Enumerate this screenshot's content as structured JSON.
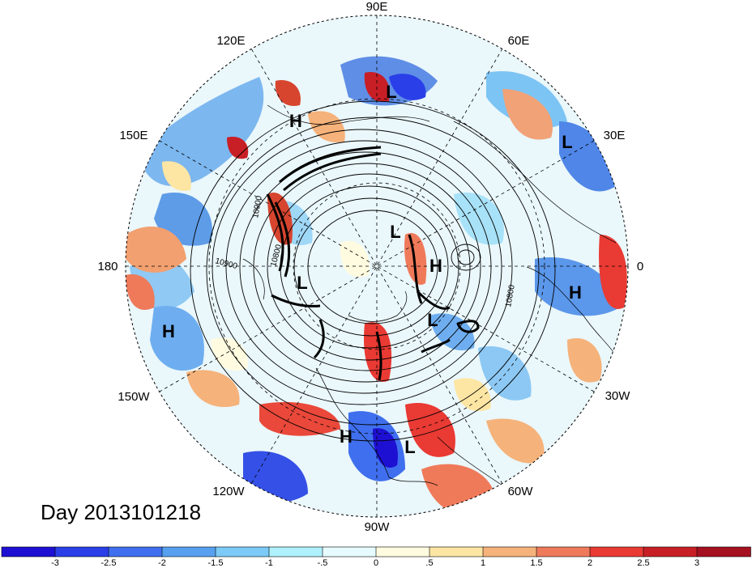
{
  "title": "Day 2013101218",
  "longitude_labels": {
    "n90e": "90E",
    "n60e": "60E",
    "n30e": "30E",
    "n0": "0",
    "n30w": "30W",
    "n60w": "60W",
    "n90w": "90W",
    "n120w": "120W",
    "n150w": "150W",
    "n180": "180",
    "n150e": "150E",
    "n120e": "120E"
  },
  "pressure_centers": [
    {
      "type": "L",
      "label": "L"
    },
    {
      "type": "H",
      "label": "H"
    },
    {
      "type": "L",
      "label": "L"
    },
    {
      "type": "L",
      "label": "L"
    },
    {
      "type": "H",
      "label": "H"
    },
    {
      "type": "L",
      "label": "L"
    },
    {
      "type": "H",
      "label": "H"
    },
    {
      "type": "L",
      "label": "L"
    },
    {
      "type": "H",
      "label": "H"
    },
    {
      "type": "H",
      "label": "H"
    },
    {
      "type": "L",
      "label": "L"
    }
  ],
  "contour_labels": [
    "10900",
    "10900",
    "10800",
    "10800"
  ],
  "colorbar": {
    "ticks": [
      "-3",
      "-2.5",
      "-2",
      "-1.5",
      "-1",
      "-.5",
      "0",
      ".5",
      "1",
      "1.5",
      "2",
      "2.5",
      "3"
    ],
    "colors": [
      "#1e10d2",
      "#2a3fe8",
      "#3f6fee",
      "#57a0f0",
      "#7ccaf7",
      "#aef0fc",
      "#e6fbff",
      "#fffbe0",
      "#fde6a4",
      "#f5b27a",
      "#ef7a5a",
      "#e93a33",
      "#c81f26",
      "#a51120"
    ]
  }
}
